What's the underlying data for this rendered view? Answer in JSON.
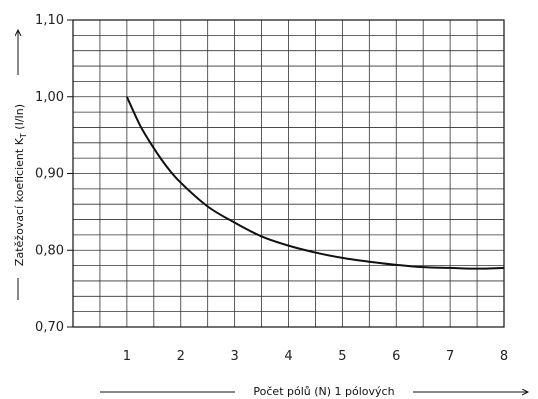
{
  "chart_data": {
    "type": "line",
    "title": "",
    "xlabel": "Počet pólů (N) 1 pólových",
    "ylabel": "Zatěžovací koeficient K",
    "ylabel_subscript": "T",
    "ylabel_unit": "(I/In)",
    "xlim": [
      0,
      8
    ],
    "ylim": [
      0.7,
      1.1
    ],
    "x_ticks": [
      "1",
      "2",
      "3",
      "4",
      "5",
      "6",
      "7",
      "8"
    ],
    "y_ticks": [
      "0,70",
      "0,80",
      "0,90",
      "1,00",
      "1,10"
    ],
    "grid": true,
    "series": [
      {
        "x": [
          1.0,
          1.25,
          1.5,
          1.75,
          2.0,
          2.5,
          3.0,
          3.5,
          4.0,
          4.5,
          5.0,
          5.5,
          6.0,
          6.5,
          7.0,
          7.5,
          8.0
        ],
        "y": [
          1.0,
          0.962,
          0.933,
          0.908,
          0.888,
          0.857,
          0.836,
          0.818,
          0.806,
          0.797,
          0.79,
          0.785,
          0.781,
          0.778,
          0.777,
          0.776,
          0.777
        ]
      }
    ]
  }
}
